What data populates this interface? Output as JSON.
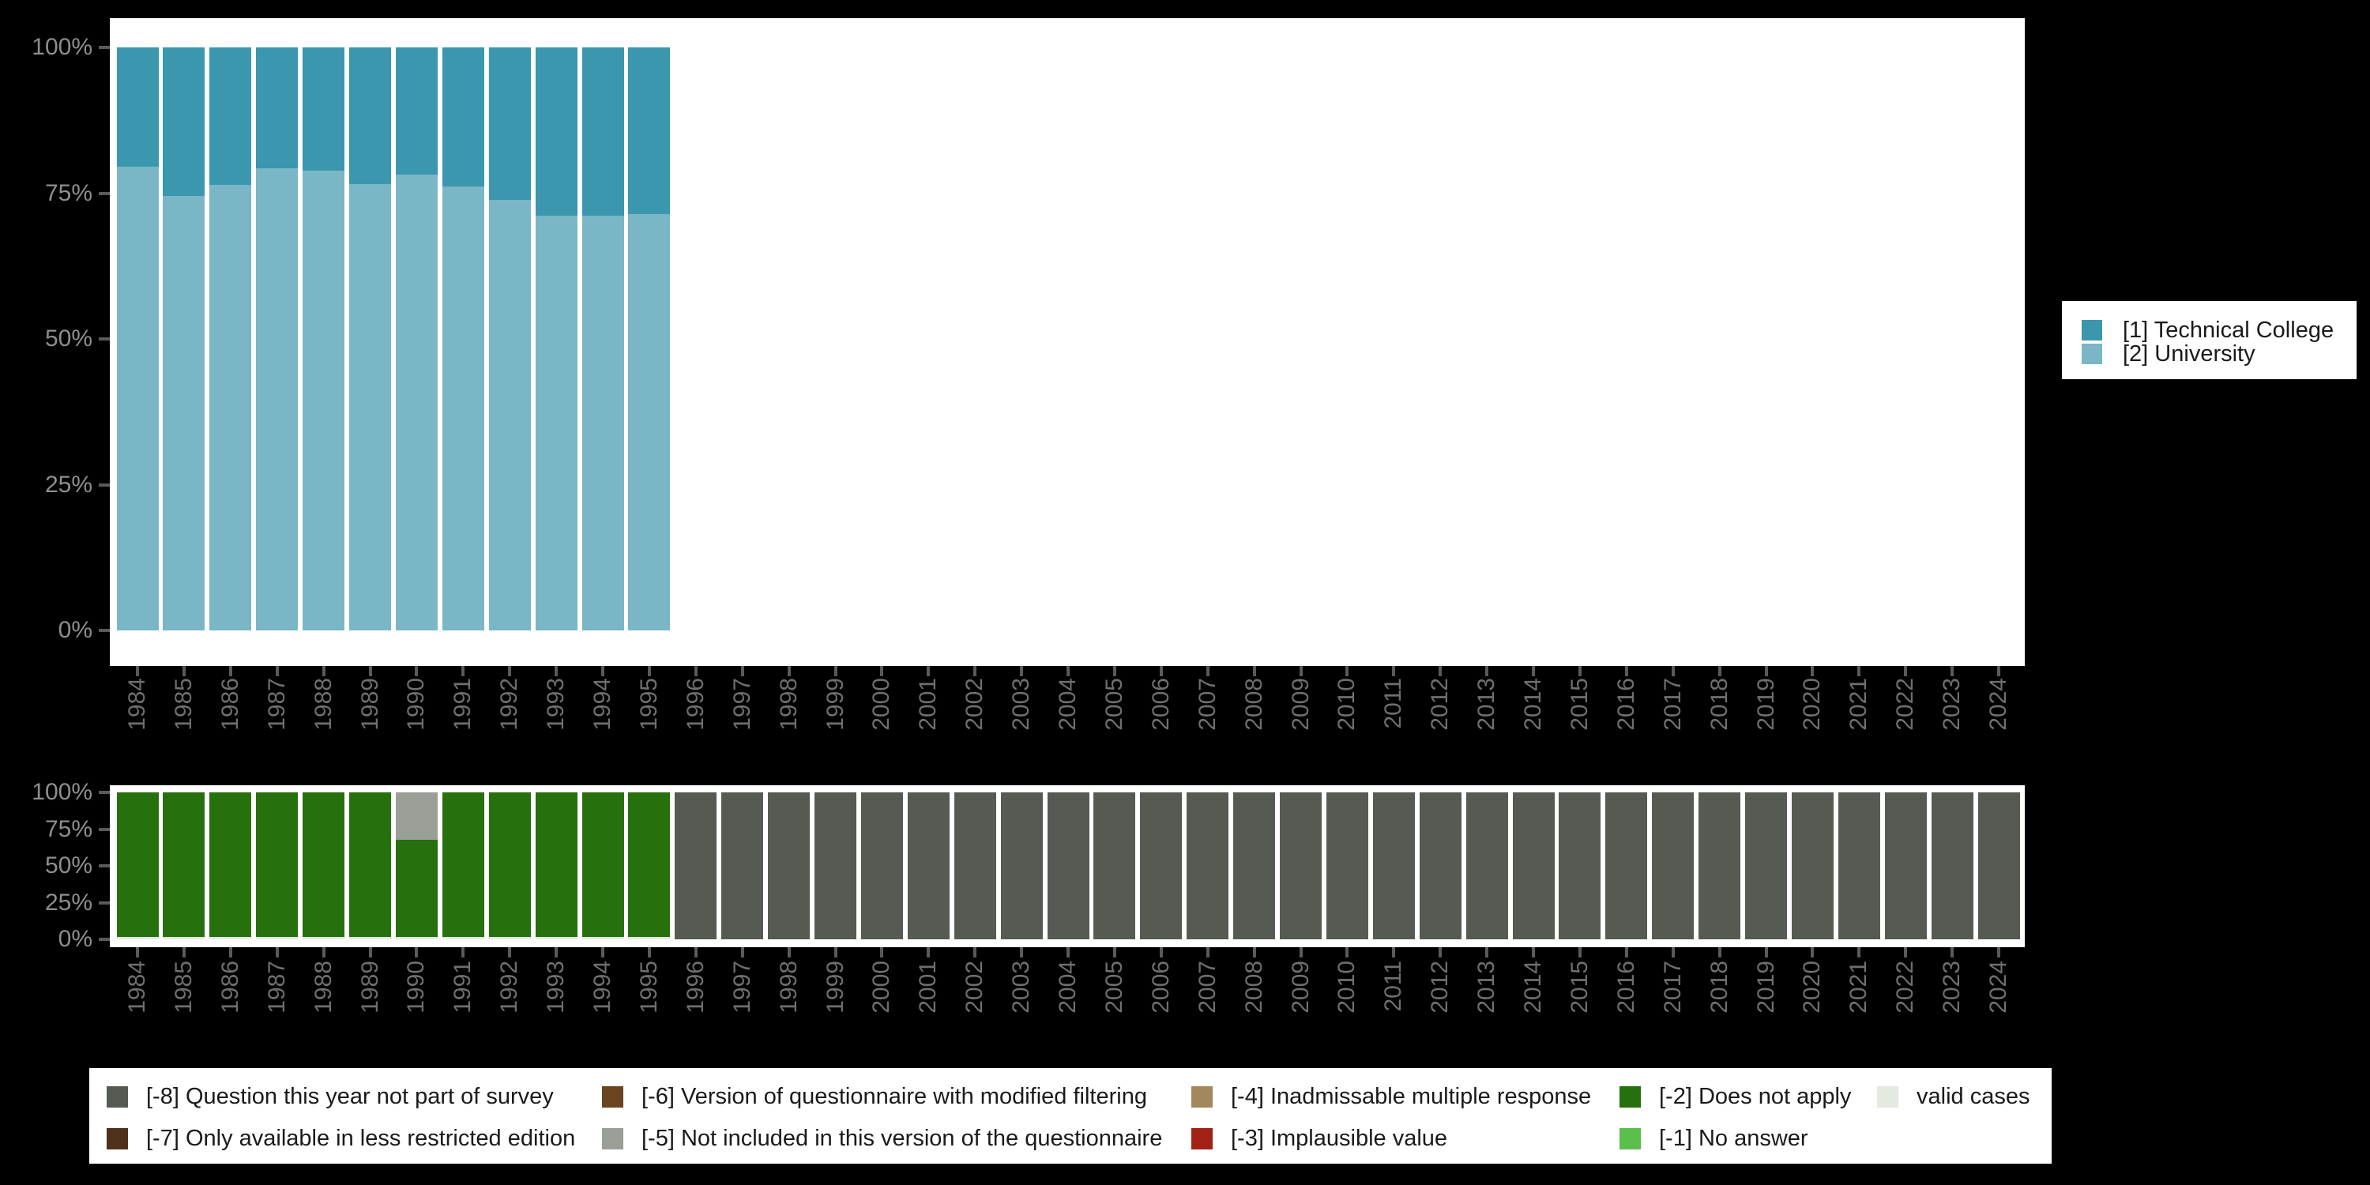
{
  "colors": {
    "background": "#000000",
    "plot_bg": "#ffffff",
    "y_axis_text": "#8e8e8e",
    "x_axis_text": "#6f6f6f",
    "tick": "#5a5a5a",
    "legend_text": "#1a1a1a",
    "palette": {
      "technical_college": "#3a97ad",
      "university": "#7ab6c6",
      "m8": "#555b53",
      "m7": "#4f3018",
      "m6": "#6a441f",
      "m5": "#9aa097",
      "m4": "#a4875c",
      "m3": "#a32014",
      "m2": "#26700e",
      "m1": "#5cbf4c",
      "valid": "#e4e9e1"
    }
  },
  "main_legend": {
    "position": "right",
    "items": [
      {
        "label": "[1] Technical College",
        "color_key": "technical_college"
      },
      {
        "label": "[2] University",
        "color_key": "university"
      }
    ]
  },
  "missing_legend": {
    "position": "bottom",
    "items": [
      {
        "label": "[-8] Question this year not part of survey",
        "color_key": "m8",
        "col": 0,
        "row": 0
      },
      {
        "label": "[-7] Only available in less restricted edition",
        "color_key": "m7",
        "col": 0,
        "row": 1
      },
      {
        "label": "[-6] Version of questionnaire with modified filtering",
        "color_key": "m6",
        "col": 1,
        "row": 0
      },
      {
        "label": "[-5] Not included in this version of the questionnaire",
        "color_key": "m5",
        "col": 1,
        "row": 1
      },
      {
        "label": "[-4] Inadmissable multiple response",
        "color_key": "m4",
        "col": 2,
        "row": 0
      },
      {
        "label": "[-3] Implausible value",
        "color_key": "m3",
        "col": 2,
        "row": 1
      },
      {
        "label": "[-2] Does not apply",
        "color_key": "m2",
        "col": 3,
        "row": 0
      },
      {
        "label": "[-1] No answer",
        "color_key": "m1",
        "col": 3,
        "row": 1
      },
      {
        "label": "valid cases",
        "color_key": "valid",
        "col": 4,
        "row": 0
      }
    ]
  },
  "chart_data": [
    {
      "type": "bar",
      "stacked": true,
      "title": "",
      "ylim": [
        0,
        100
      ],
      "grid": false,
      "legend_position": "right",
      "x_tick_rotation": -90,
      "y_tick_labels": [
        "100%",
        "75%",
        "50%",
        "25%",
        "0%"
      ],
      "y_tick_values": [
        100,
        75,
        50,
        25,
        0
      ],
      "categories": [
        "1984",
        "1985",
        "1986",
        "1987",
        "1988",
        "1989",
        "1990",
        "1991",
        "1992",
        "1993",
        "1994",
        "1995",
        "1996",
        "1997",
        "1998",
        "1999",
        "2000",
        "2001",
        "2002",
        "2003",
        "2004",
        "2005",
        "2006",
        "2007",
        "2008",
        "2009",
        "2010",
        "2011",
        "2012",
        "2013",
        "2014",
        "2015",
        "2016",
        "2017",
        "2018",
        "2019",
        "2020",
        "2021",
        "2022",
        "2023",
        "2024"
      ],
      "series": [
        {
          "name": "[2] University",
          "color_key": "university",
          "values": [
            79.5,
            74.5,
            76.4,
            79.3,
            78.8,
            76.5,
            78.2,
            76.1,
            73.9,
            71.1,
            71.1,
            71.4,
            null,
            null,
            null,
            null,
            null,
            null,
            null,
            null,
            null,
            null,
            null,
            null,
            null,
            null,
            null,
            null,
            null,
            null,
            null,
            null,
            null,
            null,
            null,
            null,
            null,
            null,
            null,
            null,
            null
          ]
        },
        {
          "name": "[1] Technical College",
          "color_key": "technical_college",
          "values": [
            20.5,
            25.5,
            23.6,
            20.7,
            21.2,
            23.5,
            21.8,
            23.9,
            26.1,
            28.9,
            28.9,
            28.6,
            null,
            null,
            null,
            null,
            null,
            null,
            null,
            null,
            null,
            null,
            null,
            null,
            null,
            null,
            null,
            null,
            null,
            null,
            null,
            null,
            null,
            null,
            null,
            null,
            null,
            null,
            null,
            null,
            null
          ]
        }
      ]
    },
    {
      "type": "bar",
      "stacked": true,
      "title": "",
      "ylim": [
        0,
        100
      ],
      "grid": false,
      "legend_position": "bottom",
      "x_tick_rotation": -90,
      "y_tick_labels": [
        "100%",
        "75%",
        "50%",
        "25%",
        "0%"
      ],
      "y_tick_values": [
        100,
        75,
        50,
        25,
        0
      ],
      "categories": [
        "1984",
        "1985",
        "1986",
        "1987",
        "1988",
        "1989",
        "1990",
        "1991",
        "1992",
        "1993",
        "1994",
        "1995",
        "1996",
        "1997",
        "1998",
        "1999",
        "2000",
        "2001",
        "2002",
        "2003",
        "2004",
        "2005",
        "2006",
        "2007",
        "2008",
        "2009",
        "2010",
        "2011",
        "2012",
        "2013",
        "2014",
        "2015",
        "2016",
        "2017",
        "2018",
        "2019",
        "2020",
        "2021",
        "2022",
        "2023",
        "2024"
      ],
      "series": [
        {
          "name": "valid cases",
          "color_key": "valid",
          "values": [
            1.5,
            1.5,
            1.5,
            1.5,
            1.5,
            1.5,
            1.5,
            1.5,
            1.5,
            1.5,
            1.5,
            1.5,
            null,
            null,
            null,
            null,
            null,
            null,
            null,
            null,
            null,
            null,
            null,
            null,
            null,
            null,
            null,
            null,
            null,
            null,
            null,
            null,
            null,
            null,
            null,
            null,
            null,
            null,
            null,
            null,
            null
          ]
        },
        {
          "name": "[-2] Does not apply",
          "color_key": "m2",
          "values": [
            98.5,
            98.5,
            98.5,
            98.5,
            98.5,
            98.5,
            66.5,
            98.5,
            98.5,
            98.5,
            98.5,
            98.5,
            null,
            null,
            null,
            null,
            null,
            null,
            null,
            null,
            null,
            null,
            null,
            null,
            null,
            null,
            null,
            null,
            null,
            null,
            null,
            null,
            null,
            null,
            null,
            null,
            null,
            null,
            null,
            null,
            null
          ]
        },
        {
          "name": "[-5] Not included in this version of the questionnaire",
          "color_key": "m5",
          "values": [
            null,
            null,
            null,
            null,
            null,
            null,
            32,
            null,
            null,
            null,
            null,
            null,
            null,
            null,
            null,
            null,
            null,
            null,
            null,
            null,
            null,
            null,
            null,
            null,
            null,
            null,
            null,
            null,
            null,
            null,
            null,
            null,
            null,
            null,
            null,
            null,
            null,
            null,
            null,
            null,
            null
          ]
        },
        {
          "name": "[-8] Question this year not part of survey",
          "color_key": "m8",
          "values": [
            null,
            null,
            null,
            null,
            null,
            null,
            null,
            null,
            null,
            null,
            null,
            null,
            100,
            100,
            100,
            100,
            100,
            100,
            100,
            100,
            100,
            100,
            100,
            100,
            100,
            100,
            100,
            100,
            100,
            100,
            100,
            100,
            100,
            100,
            100,
            100,
            100,
            100,
            100,
            100,
            100
          ]
        }
      ]
    }
  ]
}
